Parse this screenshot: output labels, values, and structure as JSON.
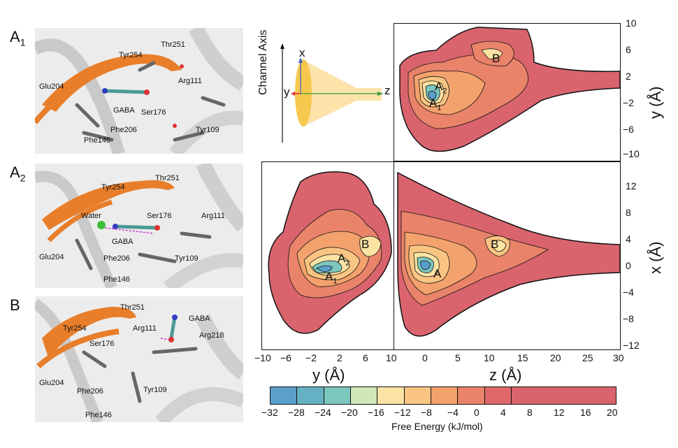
{
  "structures": [
    {
      "label": "A",
      "sub": "1",
      "residues": [
        "Thr251",
        "Tyr254",
        "Glu204",
        "Arg111",
        "GABA",
        "Ser176",
        "Phe206",
        "Tyr109",
        "Phe146"
      ]
    },
    {
      "label": "A",
      "sub": "2",
      "residues": [
        "Thr251",
        "Tyr254",
        "Water",
        "Ser176",
        "Arg111",
        "GABA",
        "Glu204",
        "Phe206",
        "Tyr109",
        "Phe146"
      ]
    },
    {
      "label": "B",
      "sub": "",
      "residues": [
        "Thr251",
        "GABA",
        "Tyr254",
        "Arg111",
        "Arg218",
        "Ser176",
        "Glu204",
        "Phe206",
        "Tyr109",
        "Phe146"
      ]
    }
  ],
  "schematic": {
    "title": "Channel Axis",
    "x_label": "x",
    "y_label": "y",
    "z_label": "z"
  },
  "plots": {
    "zy": {
      "y_ticks": [
        "10",
        "6",
        "2",
        "−2",
        "−6",
        "−10"
      ],
      "y_label": "y (Å)",
      "annotations": {
        "a1": "A",
        "a1_sub": "1",
        "a2": "A",
        "a2_sub": "2",
        "b": "B"
      }
    },
    "yx": {
      "x_ticks": [
        "−10",
        "−6",
        "−2",
        "2",
        "6",
        "10"
      ],
      "x_label": "y (Å)",
      "annotations": {
        "a1": "A",
        "a1_sub": "1",
        "a2": "A",
        "a2_sub": "2",
        "b": "B"
      }
    },
    "zx": {
      "x_ticks": [
        "0",
        "5",
        "10",
        "15",
        "20",
        "25",
        "30"
      ],
      "y_ticks": [
        "12",
        "8",
        "4",
        "0",
        "−4",
        "−8",
        "−12"
      ],
      "x_label": "z (Å)",
      "y_label": "x (Å)",
      "annotations": {
        "a": "A",
        "b": "B"
      }
    }
  },
  "colorbar": {
    "label": "Free Energy (kJ/mol)",
    "ticks": [
      "−32",
      "−28",
      "−24",
      "−20",
      "−16",
      "−12",
      "−8",
      "−4",
      "0",
      "4",
      "8",
      "12",
      "16",
      "20"
    ],
    "colors": [
      "#5b9fcb",
      "#66b2c4",
      "#7cc7be",
      "#cfe7b9",
      "#fbe3a3",
      "#fac583",
      "#f3a26d",
      "#e9836a",
      "#e0686b",
      "#d9646e",
      "#d9646e",
      "#d9646e",
      "#d9646e"
    ]
  }
}
